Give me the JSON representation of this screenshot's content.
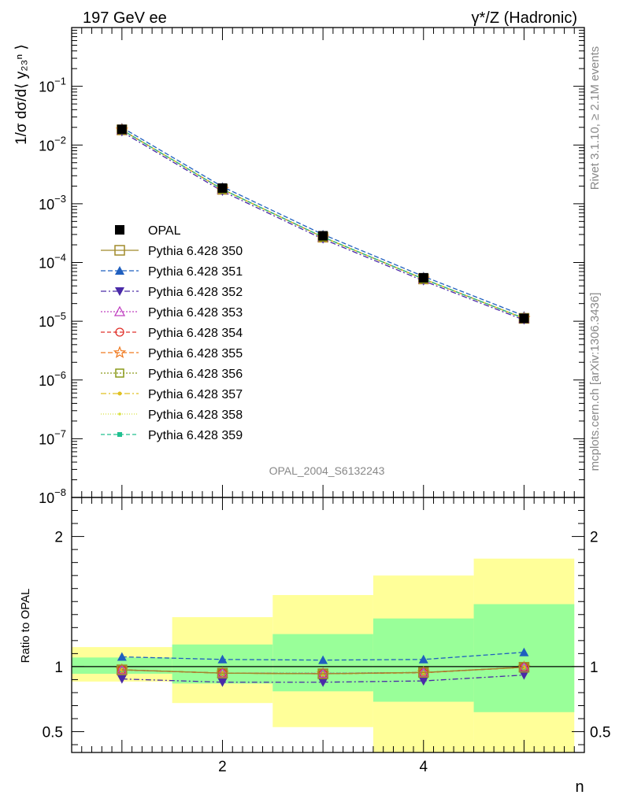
{
  "header": {
    "left": "197 GeV ee",
    "right": "γ*/Z (Hadronic)"
  },
  "side_labels": {
    "rivet": "Rivet 3.1.10, ≥ 2.1M events",
    "mcplots": "mcplots.cern.ch [arXiv:1306.3436]"
  },
  "watermark": "OPAL_2004_S6132243",
  "chart_data": [
    {
      "type": "scatter",
      "panel": "main",
      "ylabel": "1/σ dσ/d⟨ y₂₃ⁿ ⟩",
      "yscale": "log",
      "xlim": [
        0.5,
        5.6
      ],
      "ylim": [
        1e-08,
        1
      ],
      "ytick_labels": [
        {
          "value": 0.1,
          "base": "10",
          "exp": "−1"
        },
        {
          "value": 0.01,
          "base": "10",
          "exp": "−2"
        },
        {
          "value": 0.001,
          "base": "10",
          "exp": "−3"
        },
        {
          "value": 0.0001,
          "base": "10",
          "exp": "−4"
        },
        {
          "value": 1e-05,
          "base": "10",
          "exp": "−5"
        },
        {
          "value": 1e-06,
          "base": "10",
          "exp": "−6"
        },
        {
          "value": 1e-07,
          "base": "10",
          "exp": "−7"
        },
        {
          "value": 1e-08,
          "base": "10",
          "exp": "−8"
        }
      ],
      "legend_position": "left-middle",
      "x": [
        1,
        2,
        3,
        4,
        5
      ],
      "series": [
        {
          "name": "OPAL",
          "color": "#000000",
          "marker": "square-filled",
          "dash": "none",
          "values": [
            0.0185,
            0.00185,
            0.000285,
            5.5e-05,
            1.12e-05
          ]
        },
        {
          "name": "Pythia 6.428 350",
          "color": "#a08a2a",
          "marker": "square-open",
          "dash": "solid",
          "values": [
            0.0181,
            0.00176,
            0.00027,
            5.25e-05,
            1.12e-05
          ]
        },
        {
          "name": "Pythia 6.428 351",
          "color": "#1f5fbf",
          "marker": "triangle-up-filled",
          "dash": "6,3",
          "values": [
            0.0199,
            0.00195,
            0.0003,
            5.8e-05,
            1.24e-05
          ]
        },
        {
          "name": "Pythia 6.428 352",
          "color": "#4a2aa8",
          "marker": "triangle-down-filled",
          "dash": "7,3,2,3",
          "values": [
            0.0168,
            0.00163,
            0.000251,
            4.88e-05,
            1.05e-05
          ]
        },
        {
          "name": "Pythia 6.428 353",
          "color": "#c040c0",
          "marker": "triangle-up-open",
          "dash": "2,2",
          "values": [
            0.0181,
            0.00176,
            0.000271,
            5.25e-05,
            1.12e-05
          ]
        },
        {
          "name": "Pythia 6.428 354",
          "color": "#e0302a",
          "marker": "circle-open",
          "dash": "5,3",
          "values": [
            0.0181,
            0.00176,
            0.00027,
            5.24e-05,
            1.12e-05
          ]
        },
        {
          "name": "Pythia 6.428 355",
          "color": "#f07a20",
          "marker": "star-open",
          "dash": "6,3",
          "values": [
            0.0181,
            0.00176,
            0.00027,
            5.25e-05,
            1.12e-05
          ]
        },
        {
          "name": "Pythia 6.428 356",
          "color": "#8a9a1a",
          "marker": "square-open-small",
          "dash": "2,2",
          "values": [
            0.0181,
            0.00176,
            0.000271,
            5.25e-05,
            1.12e-05
          ]
        },
        {
          "name": "Pythia 6.428 357",
          "color": "#e0c020",
          "marker": "dot",
          "dash": "7,3,2,3",
          "values": [
            0.0181,
            0.00176,
            0.00027,
            5.24e-05,
            1.12e-05
          ]
        },
        {
          "name": "Pythia 6.428 358",
          "color": "#d8e040",
          "marker": "dot-small",
          "dash": "1,2",
          "values": [
            0.0181,
            0.00176,
            0.00027,
            5.25e-05,
            1.12e-05
          ]
        },
        {
          "name": "Pythia 6.428 359",
          "color": "#20c090",
          "marker": "square-filled-small",
          "dash": "5,3",
          "values": [
            0.0181,
            0.00176,
            0.000271,
            5.25e-05,
            1.12e-05
          ]
        }
      ]
    },
    {
      "type": "scatter",
      "panel": "ratio",
      "ylabel": "Ratio to OPAL",
      "xlabel": "n",
      "xlim": [
        0.5,
        5.6
      ],
      "ylim": [
        0.34,
        2.3
      ],
      "xtick_labels": [
        "2",
        "4"
      ],
      "xtick_values": [
        2,
        4
      ],
      "ytick_labels": [
        "0.5",
        "1",
        "2"
      ],
      "ytick_values": [
        0.5,
        1,
        2
      ],
      "bands": [
        {
          "x0": 0.5,
          "x1": 1.5,
          "stat_lo": 0.945,
          "stat_hi": 1.07,
          "tot_lo": 0.885,
          "tot_hi": 1.15
        },
        {
          "x0": 1.5,
          "x1": 2.5,
          "stat_lo": 0.87,
          "stat_hi": 1.17,
          "tot_lo": 0.72,
          "tot_hi": 1.38
        },
        {
          "x0": 2.5,
          "x1": 3.5,
          "stat_lo": 0.81,
          "stat_hi": 1.25,
          "tot_lo": 0.535,
          "tot_hi": 1.55
        },
        {
          "x0": 3.5,
          "x1": 4.5,
          "stat_lo": 0.73,
          "stat_hi": 1.37,
          "tot_lo": 0.34,
          "tot_hi": 1.7
        },
        {
          "x0": 4.5,
          "x1": 5.5,
          "stat_lo": 0.65,
          "stat_hi": 1.48,
          "tot_lo": 0.34,
          "tot_hi": 1.83
        }
      ],
      "colors": {
        "stat": "#99ff99",
        "total": "#ffff99"
      },
      "x": [
        1,
        2,
        3,
        4,
        5
      ],
      "series": [
        {
          "name": "Pythia 6.428 350",
          "values": [
            0.975,
            0.95,
            0.945,
            0.955,
            0.995
          ]
        },
        {
          "name": "Pythia 6.428 351",
          "values": [
            1.075,
            1.055,
            1.05,
            1.055,
            1.11
          ]
        },
        {
          "name": "Pythia 6.428 352",
          "values": [
            0.905,
            0.88,
            0.88,
            0.89,
            0.935
          ]
        },
        {
          "name": "Pythia 6.428 353",
          "values": [
            0.975,
            0.95,
            0.948,
            0.955,
            0.995
          ]
        },
        {
          "name": "Pythia 6.428 354",
          "values": [
            0.975,
            0.95,
            0.945,
            0.953,
            0.995
          ]
        },
        {
          "name": "Pythia 6.428 355",
          "values": [
            0.975,
            0.95,
            0.945,
            0.955,
            0.995
          ]
        },
        {
          "name": "Pythia 6.428 356",
          "values": [
            0.975,
            0.95,
            0.948,
            0.955,
            0.995
          ]
        },
        {
          "name": "Pythia 6.428 357",
          "values": [
            0.975,
            0.95,
            0.945,
            0.953,
            0.995
          ]
        },
        {
          "name": "Pythia 6.428 358",
          "values": [
            0.975,
            0.95,
            0.945,
            0.955,
            0.995
          ]
        },
        {
          "name": "Pythia 6.428 359",
          "values": [
            0.975,
            0.95,
            0.948,
            0.955,
            0.995
          ]
        }
      ]
    }
  ]
}
